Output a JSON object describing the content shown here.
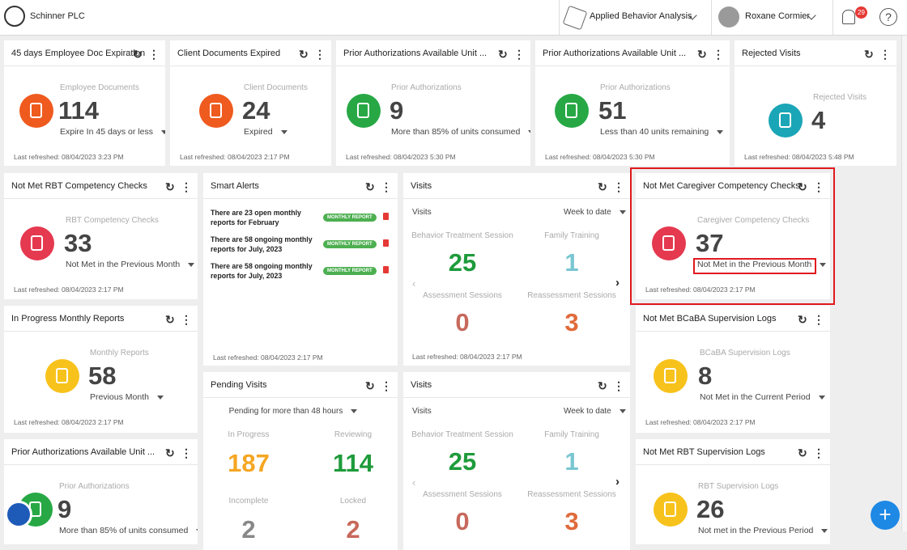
{
  "header": {
    "company": "Schinner PLC",
    "program": "Applied Behavior Analysis",
    "user": "Roxane Cormier",
    "notifications": 29,
    "help": "?"
  },
  "stat_cards": [
    {
      "title": "45 days Employee Doc Expiration",
      "label": "Employee Documents",
      "value": 114,
      "subtitle": "Expire In 45 days or less",
      "refreshed": "Last refreshed: 08/04/2023 3:23 PM"
    },
    {
      "title": "Client Documents Expired",
      "label": "Client Documents",
      "value": 24,
      "subtitle": "Expired",
      "refreshed": "Last refreshed: 08/04/2023 2:17 PM"
    },
    {
      "title": "Prior Authorizations Available Unit ...",
      "label": "Prior Authorizations",
      "value": 9,
      "subtitle": "More than 85% of units consumed",
      "refreshed": "Last refreshed: 08/04/2023 5:30 PM"
    },
    {
      "title": "Prior Authorizations Available Unit ...",
      "label": "Prior Authorizations",
      "value": 51,
      "subtitle": "Less than 40 units remaining",
      "refreshed": "Last refreshed: 08/04/2023 5:30 PM"
    },
    {
      "title": "Rejected Visits",
      "label": "Rejected Visits",
      "value": 4,
      "refreshed": "Last refreshed: 08/04/2023 5:48 PM"
    },
    {
      "title": "Not Met RBT Competency Checks",
      "label": "RBT Competency Checks",
      "value": 33,
      "subtitle": "Not Met in the Previous Month",
      "refreshed": "Last refreshed: 08/04/2023 2:17 PM"
    },
    {
      "title": "Not Met Caregiver Competency Checks",
      "label": "Caregiver Competency Checks",
      "value": 37,
      "subtitle": "Not Met in the Previous Month",
      "refreshed": "Last refreshed: 08/04/2023 2:17 PM"
    },
    {
      "title": "In Progress Monthly Reports",
      "label": "Monthly Reports",
      "value": 58,
      "subtitle": "Previous Month",
      "refreshed": "Last refreshed: 08/04/2023 2:17 PM"
    },
    {
      "title": "Not Met BCaBA Supervision Logs",
      "label": "BCaBA Supervision Logs",
      "value": 8,
      "subtitle": "Not Met in the Current Period",
      "refreshed": "Last refreshed: 08/04/2023 2:17 PM"
    },
    {
      "title": "Prior Authorizations Available Unit ...",
      "label": "Prior Authorizations",
      "value": 9,
      "subtitle": "More than 85% of units consumed"
    },
    {
      "title": "Not Met RBT Supervision Logs",
      "label": "RBT Supervision Logs",
      "value": 26,
      "subtitle": "Not met in the Previous Period"
    }
  ],
  "smart_alerts": {
    "title": "Smart Alerts",
    "items": [
      {
        "text": "There are 23 open monthly reports for February",
        "badge": "MONTHLY REPORT"
      },
      {
        "text": "There are 58 ongoing monthly reports for July, 2023",
        "badge": "MONTHLY REPORT"
      },
      {
        "text": "There are 58 ongoing monthly reports for July, 2023",
        "badge": "MONTHLY REPORT"
      }
    ],
    "refreshed": "Last refreshed: 08/04/2023 2:17 PM"
  },
  "visits_cards": [
    {
      "title": "Visits",
      "section": "Visits",
      "period": "Week to date",
      "items": [
        {
          "label": "Behavior Treatment Session",
          "value": 25
        },
        {
          "label": "Family Training",
          "value": 1
        },
        {
          "label": "Assessment Sessions",
          "value": 0
        },
        {
          "label": "Reassessment Sessions",
          "value": 3
        }
      ],
      "refreshed": "Last refreshed: 08/04/2023 2:17 PM"
    },
    {
      "title": "Visits",
      "section": "Visits",
      "period": "Week to date",
      "items": [
        {
          "label": "Behavior Treatment Session",
          "value": 25
        },
        {
          "label": "Family Training",
          "value": 1
        },
        {
          "label": "Assessment Sessions",
          "value": 0
        },
        {
          "label": "Reassessment Sessions",
          "value": 3
        }
      ]
    }
  ],
  "pending_visits": {
    "title": "Pending Visits",
    "filter": "Pending for more than 48 hours",
    "items": [
      {
        "label": "In Progress",
        "value": 187
      },
      {
        "label": "Reviewing",
        "value": 114
      },
      {
        "label": "Incomplete",
        "value": 2
      },
      {
        "label": "Locked",
        "value": 2
      }
    ]
  }
}
